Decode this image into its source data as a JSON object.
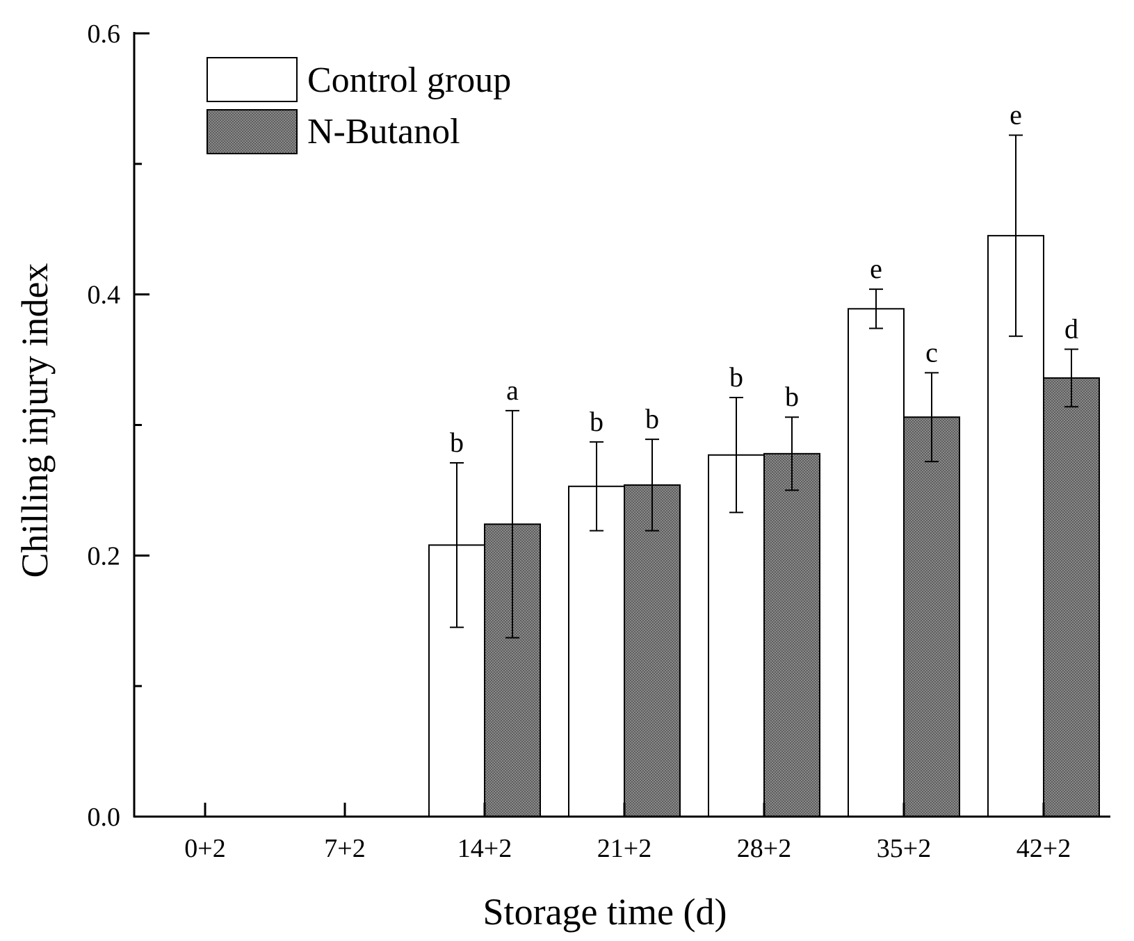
{
  "chart_data": {
    "type": "bar",
    "title": "",
    "xlabel": "Storage time (d)",
    "ylabel": "Chilling injury index",
    "ylim": [
      0,
      0.6
    ],
    "yticks": [
      "0.0",
      "0.2",
      "0.4",
      "0.6"
    ],
    "categories": [
      "0+2",
      "7+2",
      "14+2",
      "21+2",
      "28+2",
      "35+2",
      "42+2"
    ],
    "series": [
      {
        "name": "Control group",
        "fill": "white",
        "values": [
          0,
          0,
          0.208,
          0.253,
          0.277,
          0.389,
          0.445
        ],
        "errors": [
          0,
          0,
          0.063,
          0.034,
          0.044,
          0.015,
          0.077
        ],
        "labels": [
          "",
          "",
          "b",
          "b",
          "b",
          "e",
          "e"
        ]
      },
      {
        "name": "N-Butanol",
        "fill": "hatched-gray",
        "values": [
          0,
          0,
          0.224,
          0.254,
          0.278,
          0.306,
          0.336
        ],
        "errors": [
          0,
          0,
          0.087,
          0.035,
          0.028,
          0.034,
          0.022
        ],
        "labels": [
          "",
          "",
          "a",
          "b",
          "b",
          "c",
          "d"
        ]
      }
    ],
    "legend": "top-left",
    "grid": false
  }
}
